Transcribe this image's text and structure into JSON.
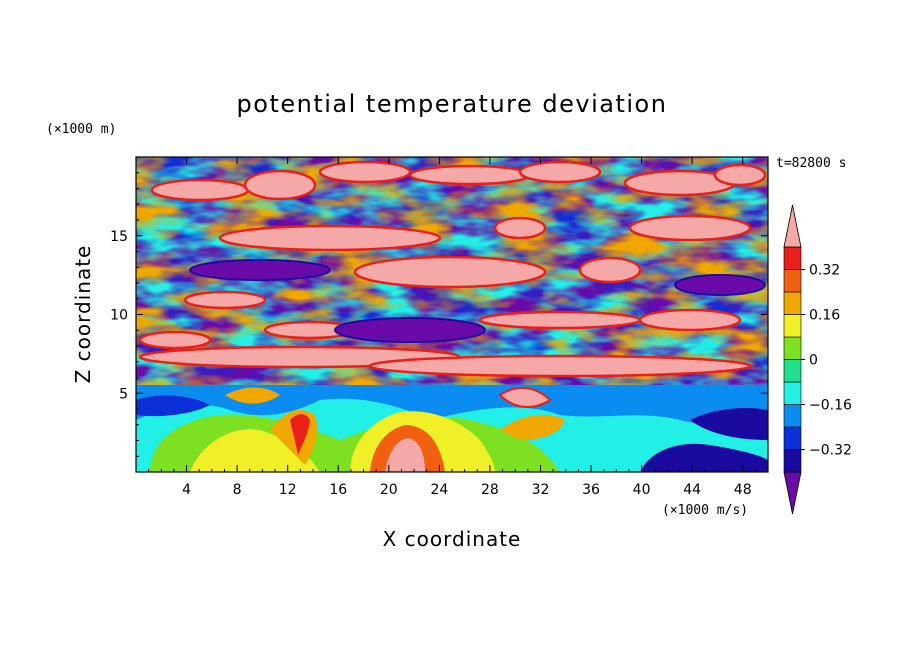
{
  "chart_data": {
    "type": "heatmap",
    "title": "potential temperature deviation",
    "xlabel": "X coordinate",
    "ylabel": "Z coordinate",
    "x_unit": "(×1000 m/s)",
    "y_unit": "(×1000 m)",
    "time_label": "t=82800 s",
    "xlim": [
      0,
      50
    ],
    "ylim": [
      0,
      20
    ],
    "x_ticks": [
      "4",
      "8",
      "12",
      "16",
      "20",
      "24",
      "28",
      "32",
      "36",
      "40",
      "44",
      "48"
    ],
    "x_tick_values": [
      4,
      8,
      12,
      16,
      20,
      24,
      28,
      32,
      36,
      40,
      44,
      48
    ],
    "y_ticks": [
      "5",
      "10",
      "15"
    ],
    "y_tick_values": [
      5,
      10,
      15
    ],
    "colorbar": {
      "extend": "both",
      "levels": [
        -0.4,
        -0.32,
        -0.24,
        -0.16,
        -0.08,
        0,
        0.08,
        0.16,
        0.24,
        0.32,
        0.4
      ],
      "colors": [
        "#6a0aa8",
        "#1a0aa0",
        "#0c2fd8",
        "#0a8cf0",
        "#22f0e6",
        "#20e08a",
        "#7de020",
        "#f0f028",
        "#f0a800",
        "#f06010",
        "#e82018",
        "#f4a8a8"
      ],
      "tick_labels": [
        "0.32",
        "0.16",
        "0",
        "-0.16",
        "-0.32"
      ],
      "tick_values": [
        0.32,
        0.16,
        0,
        -0.16,
        -0.32
      ]
    },
    "field_description_values": {
      "upper_layer_range_km": [
        6,
        20
      ],
      "lower_layer_range_km": [
        0,
        6
      ]
    }
  }
}
